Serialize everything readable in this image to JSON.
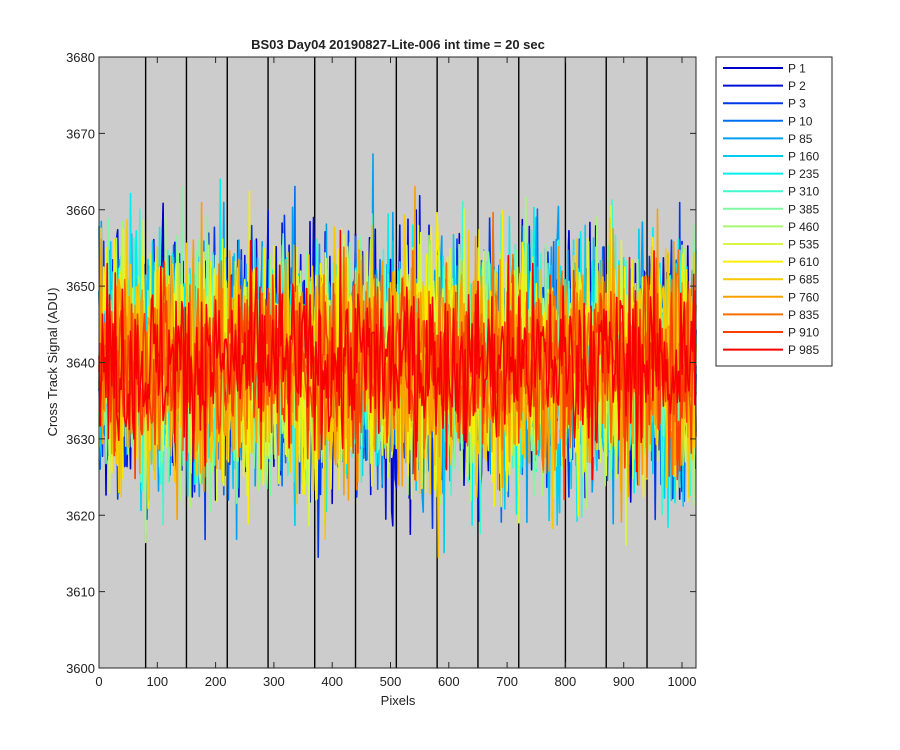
{
  "chart_data": {
    "type": "line",
    "title": "BS03 Day04 20190827-Lite-006 int time = 20 sec",
    "xlabel": "Pixels",
    "ylabel": "Cross Track Signal (ADU)",
    "xlim": [
      0,
      1024
    ],
    "ylim": [
      3600,
      3680
    ],
    "x_ticks": [
      0,
      100,
      200,
      300,
      400,
      500,
      600,
      700,
      800,
      900,
      1000
    ],
    "y_ticks": [
      3600,
      3610,
      3620,
      3630,
      3640,
      3650,
      3660,
      3670,
      3680
    ],
    "x_tick_labels": [
      "0",
      "100",
      "200",
      "300",
      "400",
      "500",
      "600",
      "700",
      "800",
      "900",
      "1000"
    ],
    "y_tick_labels": [
      "3600",
      "3610",
      "3620",
      "3630",
      "3640",
      "3650",
      "3660",
      "3670",
      "3680"
    ],
    "vertical_lines_x": [
      80,
      150,
      220,
      290,
      370,
      440,
      510,
      580,
      650,
      720,
      800,
      870,
      940
    ],
    "background": "#cccccc",
    "legend_position": "outside-right",
    "signal_mean": 3640,
    "signal_spread_typical": 10,
    "series": [
      {
        "name": "P 1",
        "color": "#0000c8"
      },
      {
        "name": "P 2",
        "color": "#0010d8"
      },
      {
        "name": "P 3",
        "color": "#0038e8"
      },
      {
        "name": "P 10",
        "color": "#0070f0"
      },
      {
        "name": "P 85",
        "color": "#00a0f0"
      },
      {
        "name": "P 160",
        "color": "#00ccf0"
      },
      {
        "name": "P 235",
        "color": "#00eeee"
      },
      {
        "name": "P 310",
        "color": "#40f8d0"
      },
      {
        "name": "P 385",
        "color": "#80f8a0"
      },
      {
        "name": "P 460",
        "color": "#a8f870"
      },
      {
        "name": "P 535",
        "color": "#d8f840"
      },
      {
        "name": "P 610",
        "color": "#f8f000"
      },
      {
        "name": "P 685",
        "color": "#f8c800"
      },
      {
        "name": "P 760",
        "color": "#f8a000"
      },
      {
        "name": "P 835",
        "color": "#f87000"
      },
      {
        "name": "P 910",
        "color": "#f84000"
      },
      {
        "name": "P 985",
        "color": "#f80000"
      }
    ]
  }
}
